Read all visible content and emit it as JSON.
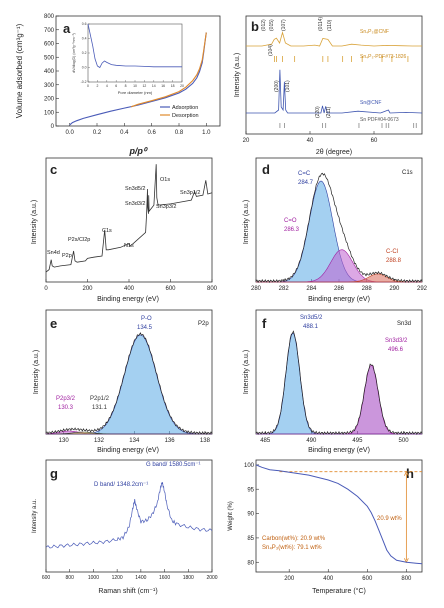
{
  "chart_data": [
    {
      "id": "a",
      "panel_label": "a",
      "type": "line",
      "xlabel": "p/p⁰",
      "ylabel": "Volume adsorbed (cm³g⁻¹)",
      "xlim": [
        -0.1,
        1.1
      ],
      "ylim": [
        0,
        800
      ],
      "xticks": [
        0.0,
        0.2,
        0.4,
        0.6,
        0.8,
        1.0
      ],
      "xtick_labels": [
        "0.0",
        "0.2",
        "0.4",
        "0.6",
        "0.8",
        "1.0"
      ],
      "yticks": [
        0,
        100,
        200,
        300,
        400,
        500,
        600,
        700,
        800
      ],
      "ytick_labels": [
        "0",
        "100",
        "200",
        "300",
        "400",
        "500",
        "600",
        "700",
        "800"
      ],
      "legend_position": "bottom-right",
      "series": [
        {
          "name": "Adsorption",
          "color": "#4a5bb8",
          "x": [
            0.0,
            0.02,
            0.05,
            0.1,
            0.2,
            0.3,
            0.4,
            0.5,
            0.6,
            0.7,
            0.8,
            0.85,
            0.9,
            0.93,
            0.95,
            0.97,
            0.98,
            0.99,
            1.0
          ],
          "y": [
            8,
            25,
            38,
            55,
            82,
            108,
            130,
            152,
            178,
            205,
            240,
            268,
            310,
            350,
            395,
            460,
            530,
            610,
            680
          ]
        },
        {
          "name": "Desorption",
          "color": "#e08a2c",
          "x": [
            1.0,
            0.99,
            0.98,
            0.97,
            0.95,
            0.93,
            0.9,
            0.85,
            0.8,
            0.7,
            0.6,
            0.5,
            0.45
          ],
          "y": [
            680,
            615,
            545,
            480,
            415,
            372,
            330,
            282,
            250,
            212,
            184,
            158,
            140
          ]
        }
      ],
      "inset": {
        "type": "line",
        "xlabel": "Pore diameter (nm)",
        "ylabel": "dV/dlog(D) (cm³g⁻¹nm⁻¹)",
        "xlim": [
          0,
          20
        ],
        "ylim": [
          -0.2,
          0.6
        ],
        "xticks": [
          0,
          2,
          4,
          6,
          8,
          10,
          12,
          14,
          16,
          18,
          20
        ],
        "xtick_labels": [
          "0",
          "2",
          "4",
          "6",
          "8",
          "10",
          "12",
          "14",
          "16",
          "18",
          "20"
        ],
        "yticks": [
          -0.2,
          0.0,
          0.2,
          0.4,
          0.6
        ],
        "ytick_labels": [
          "-0.2",
          "0.0",
          "0.2",
          "0.4",
          "0.6"
        ],
        "series": [
          {
            "color": "#4a5bb8",
            "x": [
              0,
              1,
              1.5,
              2,
              2.5,
              3,
              3.5,
              4,
              5,
              6,
              8,
              10,
              12,
              14,
              16,
              18,
              20
            ],
            "y": [
              0.6,
              0.3,
              0.12,
              0.02,
              0.0,
              0.06,
              0.09,
              0.07,
              0.04,
              0.03,
              0.02,
              0.02,
              0.015,
              0.01,
              0.01,
              0.01,
              0.01
            ]
          }
        ]
      }
    },
    {
      "id": "b",
      "panel_label": "b",
      "type": "line",
      "xlabel": "2θ (degree)",
      "ylabel": "Intensity (a.u.)",
      "xlim": [
        20,
        75
      ],
      "xticks": [
        20,
        40,
        60
      ],
      "xtick_labels": [
        "20",
        "40",
        "60"
      ],
      "series": [
        {
          "name": "Sn₄P₃@CNF",
          "color": "#d9a33a",
          "x": [
            20,
            25,
            28.0,
            28.8,
            29.5,
            30.5,
            31.4,
            32.3,
            34,
            38,
            41.5,
            43,
            44.0,
            45.6,
            47,
            50,
            53,
            56,
            60,
            64,
            68,
            72,
            75
          ],
          "y": [
            10,
            10,
            10.6,
            12.2,
            12.6,
            11,
            14.5,
            11,
            10,
            10,
            10.3,
            10,
            12.5,
            12.2,
            10,
            10,
            10.6,
            10.3,
            10,
            10.2,
            10.1,
            10,
            10
          ]
        },
        {
          "name": "Sn@CNF",
          "color": "#3f56b0",
          "x": [
            20,
            25,
            29,
            30.2,
            30.6,
            31.0,
            31.6,
            32.0,
            32.4,
            33,
            38,
            43.4,
            43.9,
            44.4,
            44.9,
            45.4,
            50,
            55,
            62,
            64.5,
            65,
            70,
            75
          ],
          "y": [
            2,
            2,
            2,
            2.5,
            9.2,
            3,
            2.5,
            7.2,
            2.5,
            2,
            2,
            2,
            3.2,
            2,
            3.1,
            2,
            2,
            2.3,
            2,
            2.5,
            2,
            2.1,
            2
          ]
        }
      ],
      "annotations": [
        "(012)",
        "(015)",
        "(107)",
        "(0114)",
        "(110)",
        "(104)",
        "(200)",
        "(101)",
        "(220)",
        "(211)"
      ],
      "reference_labels": [
        "Sn₄P₃-PDF#73-1826",
        "Sn PDF#04-0673"
      ],
      "reference_colors": [
        "#d9a33a",
        "#888888"
      ],
      "reference_peaks_top": [
        28.9,
        29.5,
        31.4,
        35.2,
        44.0,
        45.6,
        50.2,
        53.0,
        56.3,
        62.5,
        65.6,
        70.6
      ],
      "reference_peaks_bottom": [
        30.6,
        32.0,
        43.9,
        44.9,
        55.3,
        62.5,
        63.8,
        64.6,
        72.4,
        73.2
      ]
    },
    {
      "id": "c",
      "panel_label": "c",
      "type": "line",
      "xlabel": "Binding energy (eV)",
      "ylabel": "Intensity (a.u.)",
      "xlim": [
        0,
        800
      ],
      "xticks": [
        0,
        200,
        400,
        600,
        800
      ],
      "xtick_labels": [
        "0",
        "200",
        "400",
        "600",
        "800"
      ],
      "series": [
        {
          "color": "#333333",
          "x": [
            0,
            15,
            25,
            30,
            40,
            70,
            120,
            133,
            140,
            150,
            190,
            200,
            230,
            270,
            283,
            290,
            300,
            360,
            398,
            405,
            420,
            480,
            485,
            489,
            490,
            494,
            495,
            497,
            520,
            531,
            534,
            540,
            600,
            700,
            716,
            725,
            756,
            770,
            780,
            800
          ],
          "y": [
            8,
            10,
            18,
            13,
            12,
            13,
            14,
            25,
            17,
            16,
            17,
            19,
            20,
            21,
            42,
            26,
            26,
            28,
            31,
            29,
            31,
            40,
            55,
            75,
            60,
            55,
            70,
            57,
            62,
            95,
            68,
            62,
            63,
            66,
            73,
            69,
            70,
            82,
            71,
            72
          ]
        }
      ],
      "annotations": [
        "Sn4d",
        "P2p",
        "P2s/Cl2p",
        "C1s",
        "N1s",
        "Sn3d5/2",
        "Sn3d3/2",
        "O1s",
        "Sn3p3/2",
        "Sn3p1/2"
      ]
    },
    {
      "id": "d",
      "panel_label": "d",
      "type": "line",
      "title": "C1s",
      "xlabel": "Binding energy (eV)",
      "ylabel": "Intensity (a.u.)",
      "xlim": [
        280,
        292
      ],
      "xticks": [
        280,
        282,
        284,
        286,
        288,
        290,
        292
      ],
      "xtick_labels": [
        "280",
        "282",
        "284",
        "286",
        "288",
        "290",
        "292"
      ],
      "ylim": [
        0,
        1.05
      ],
      "peaks": [
        {
          "label": "C=C",
          "value": "284.7",
          "center": 284.7,
          "height": 1.0,
          "width": 0.85,
          "color": "#5aa9e6",
          "label_color": "#3040a0"
        },
        {
          "label": "C=O",
          "value": "286.3",
          "center": 286.2,
          "height": 0.32,
          "width": 0.8,
          "color": "#c060d0",
          "label_color": "#a020a0"
        },
        {
          "label": "C-Cl",
          "value": "288.8",
          "center": 288.8,
          "height": 0.08,
          "width": 0.65,
          "color": "#d86a5a",
          "label_color": "#c04020"
        }
      ]
    },
    {
      "id": "e",
      "panel_label": "e",
      "type": "line",
      "title": "P2p",
      "xlabel": "Binding energy (eV)",
      "ylabel": "Intensity (a.u.)",
      "xlim": [
        129,
        138.4
      ],
      "xticks": [
        130,
        132,
        134,
        136,
        138
      ],
      "xtick_labels": [
        "130",
        "132",
        "134",
        "136",
        "138"
      ],
      "ylim": [
        0,
        1.05
      ],
      "peaks": [
        {
          "label": "P-O",
          "value": "134.5",
          "center": 134.35,
          "height": 1.0,
          "width": 0.9,
          "color": "#5aa9e6",
          "label_color": "#3040a0"
        },
        {
          "label": "P2p3/2",
          "value": "130.3",
          "center": 130.3,
          "height": 0.03,
          "width": 0.55,
          "color": "#c060d0",
          "label_color": "#a020a0"
        },
        {
          "label": "P2p1/2",
          "value": "131.1",
          "center": 131.1,
          "height": 0.02,
          "width": 0.55,
          "color": "#d6c84a",
          "label_color": "#333333"
        }
      ]
    },
    {
      "id": "f",
      "panel_label": "f",
      "type": "line",
      "title": "Sn3d",
      "xlabel": "Binding energy (eV)",
      "ylabel": "Intensity (a.u.)",
      "xlim": [
        484,
        502
      ],
      "xticks": [
        485,
        490,
        495,
        500
      ],
      "xtick_labels": [
        "485",
        "490",
        "495",
        "500"
      ],
      "ylim": [
        0,
        1.05
      ],
      "peaks": [
        {
          "label": "Sn3d5/2",
          "value": "488.1",
          "center": 488.0,
          "height": 1.0,
          "width": 0.75,
          "color": "#5aa9e6",
          "label_color": "#3040a0"
        },
        {
          "label": "Sn3d3/2",
          "value": "496.6",
          "center": 496.5,
          "height": 0.68,
          "width": 0.75,
          "color": "#a040c0",
          "label_color": "#a020a0"
        }
      ]
    },
    {
      "id": "g",
      "panel_label": "g",
      "type": "line",
      "xlabel": "Raman shift (cm⁻¹)",
      "ylabel": "Intensity a.u.",
      "xlim": [
        600,
        2000
      ],
      "xticks": [
        600,
        800,
        1000,
        1200,
        1400,
        1600,
        1800,
        2000
      ],
      "xtick_labels": [
        "600",
        "800",
        "1000",
        "1200",
        "1400",
        "1600",
        "1800",
        "2000"
      ],
      "series": [
        {
          "color": "#4a5bb8",
          "x": [
            600,
            700,
            800,
            900,
            1000,
            1100,
            1200,
            1250,
            1300,
            1330,
            1348,
            1366,
            1400,
            1450,
            1500,
            1540,
            1565,
            1580,
            1595,
            1620,
            1660,
            1700,
            1800,
            1900,
            2000
          ],
          "y": [
            22,
            23,
            24,
            25,
            26,
            27,
            29,
            31,
            40,
            56,
            64,
            56,
            45,
            46,
            52,
            62,
            75,
            80,
            74,
            60,
            46,
            43,
            40,
            38,
            37
          ]
        }
      ],
      "annotations": [
        "D band/ 1348.2cm⁻¹",
        "G band/ 1580.5cm⁻¹"
      ]
    },
    {
      "id": "h",
      "panel_label": "h",
      "type": "line",
      "xlabel": "Temperature (°C)",
      "ylabel": "Weight (%)",
      "xlim": [
        30,
        880
      ],
      "ylim": [
        78,
        101
      ],
      "xticks": [
        200,
        400,
        600,
        800
      ],
      "xtick_labels": [
        "200",
        "400",
        "600",
        "800"
      ],
      "yticks": [
        80,
        85,
        90,
        95,
        100
      ],
      "ytick_labels": [
        "80",
        "85",
        "90",
        "95",
        "100"
      ],
      "series": [
        {
          "color": "#4a5bb8",
          "x": [
            30,
            60,
            100,
            150,
            200,
            300,
            400,
            450,
            500,
            550,
            600,
            620,
            640,
            660,
            680,
            700,
            720,
            750,
            800,
            850,
            880
          ],
          "y": [
            100,
            99.5,
            99.0,
            98.8,
            98.5,
            97.9,
            96.9,
            96.2,
            95.0,
            93.5,
            91.5,
            90.2,
            88.5,
            86.5,
            84.5,
            82.5,
            81.3,
            80.4,
            80.0,
            79.8,
            79.7
          ]
        }
      ],
      "reference_line_y": 98.6,
      "reference_line_color": "#e08a2c",
      "annotations": [
        "20.9 wt%",
        "Carbon(wt%): 20.9 wt%",
        "Sn₄P₃(wt%): 79.1 wt%"
      ]
    }
  ]
}
